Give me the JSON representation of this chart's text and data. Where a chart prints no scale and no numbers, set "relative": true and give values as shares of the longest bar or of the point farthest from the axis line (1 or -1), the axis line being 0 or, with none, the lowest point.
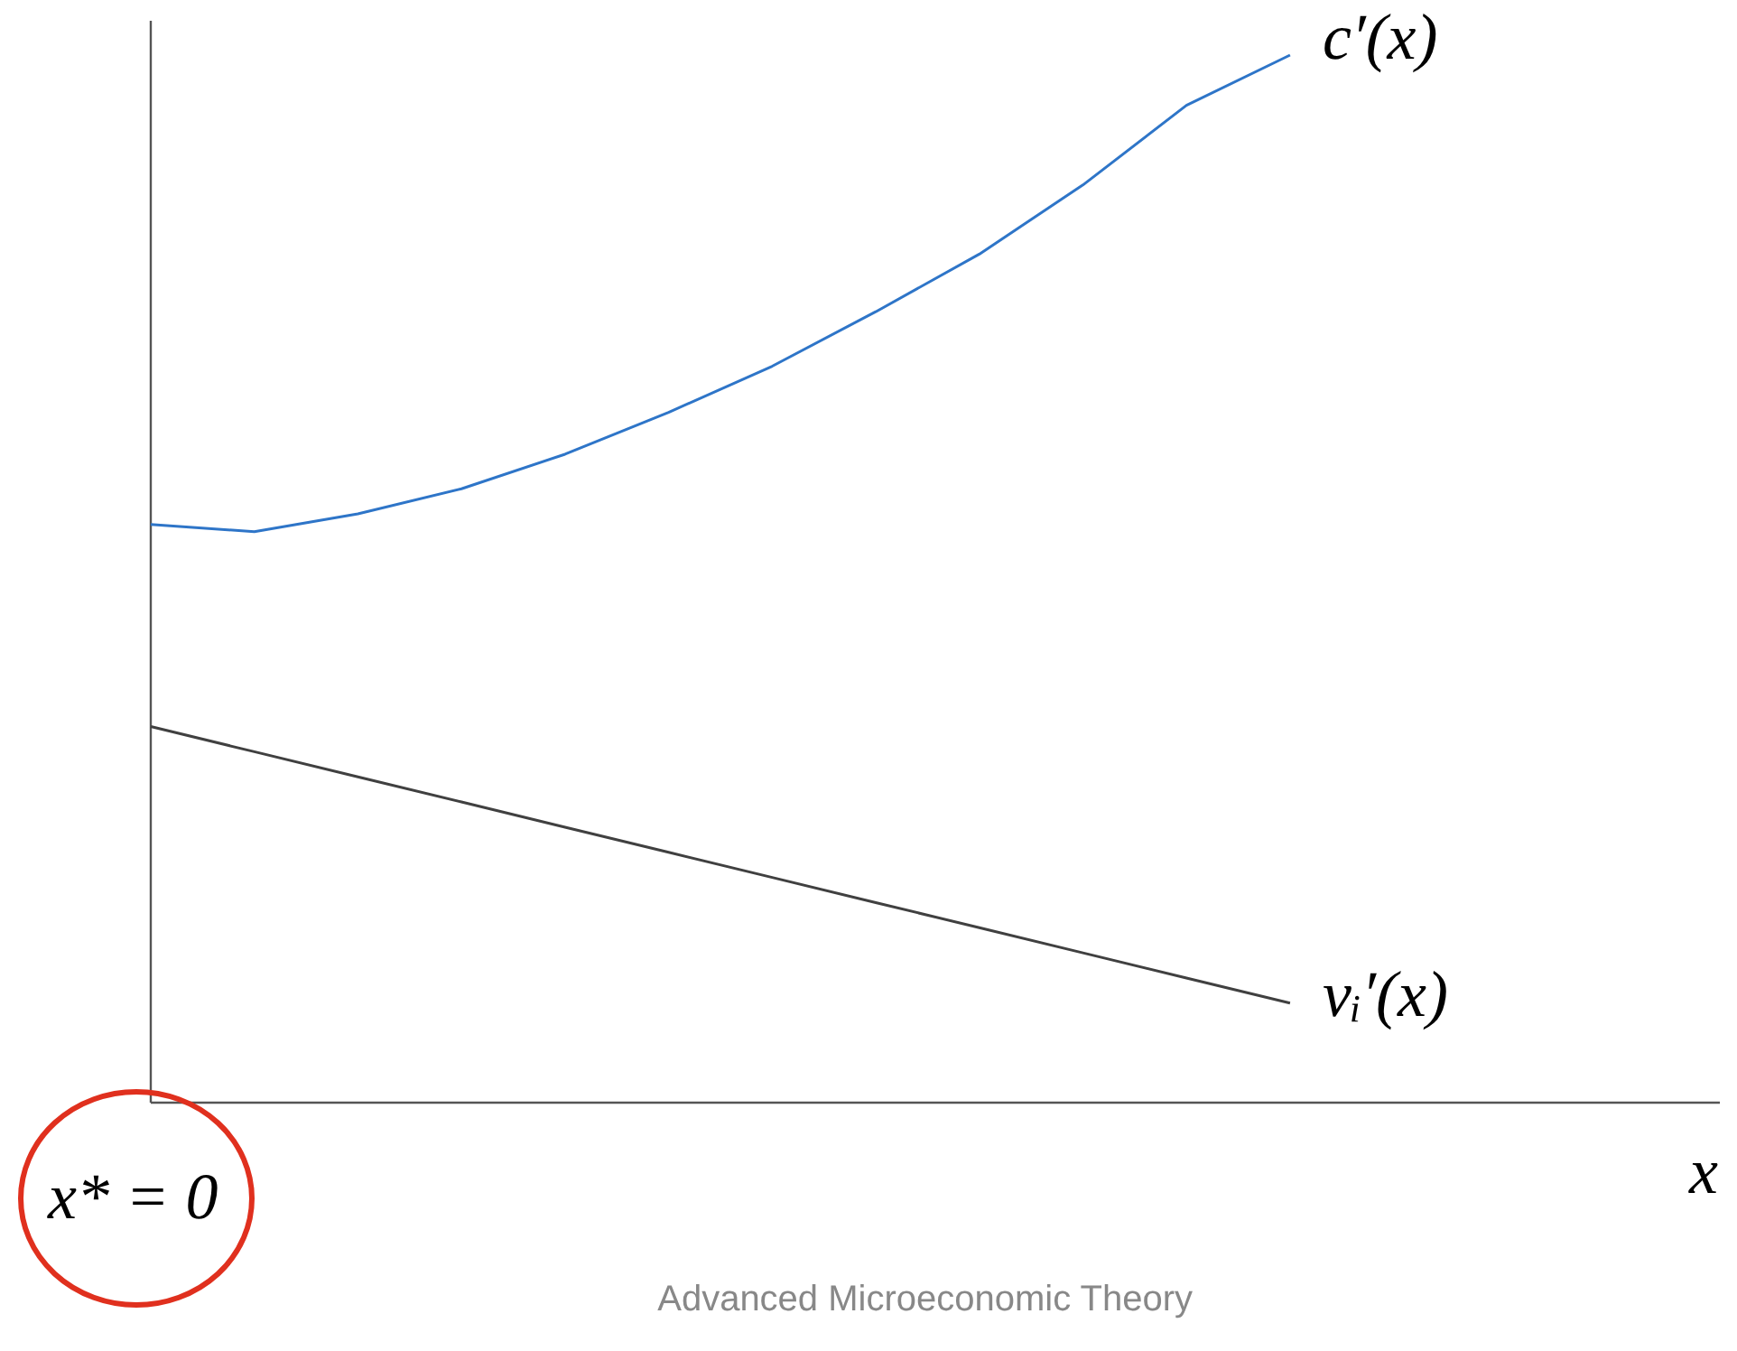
{
  "chart_data": {
    "type": "line",
    "relative": true,
    "categories": [
      null,
      null,
      null,
      null,
      null,
      null,
      null,
      null,
      null,
      null,
      null,
      null
    ],
    "series": [
      {
        "name": "c′(x)",
        "color": "#2e75c8",
        "values": [
          0.552,
          0.545,
          0.562,
          0.586,
          0.619,
          0.659,
          0.703,
          0.755,
          0.81,
          0.876,
          0.952,
          1.0
        ]
      },
      {
        "name": "vᵢ′(x)",
        "color": "#404040",
        "values": [
          0.359,
          0.335,
          0.311,
          0.287,
          0.263,
          0.239,
          0.215,
          0.191,
          0.167,
          0.143,
          0.119,
          0.095
        ]
      }
    ],
    "annotations": [
      "x* = 0",
      "x",
      "Advanced Microeconomic Theory"
    ],
    "legend": false
  }
}
